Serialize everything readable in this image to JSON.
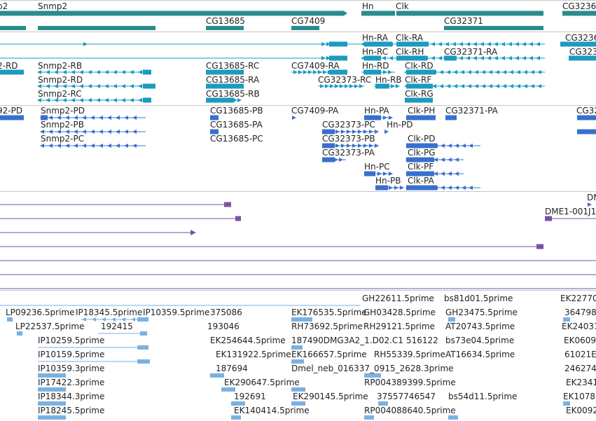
{
  "colors": {
    "gene": "#2a8c8c",
    "flybase_transcript": "#1b9bc0",
    "refseq_transcript": "#3870cf",
    "modencode": "#7a50a8",
    "est": "#7ab1e0",
    "divider": "#c8c8c8"
  },
  "tracks": {
    "genes": {
      "labels": [
        "p2",
        "Snmp2",
        "CG13685",
        "CG7409",
        "Hn",
        "Clk",
        "CG32371",
        "CG3236"
      ]
    },
    "flybase_transcripts": {
      "labels": [
        "Hn-RA",
        "Clk-RA",
        "CG3236",
        "Hn-RC",
        "Clk-RH",
        "CG32371-RA",
        "CG323",
        "2-RD",
        "Snmp2-RB",
        "CG13685-RC",
        "CG7409-RA",
        "Hn-RD",
        "Clk-RD",
        "Snmp2-RD",
        "CG13685-RA",
        "CG32373-RC",
        "Hn-RB",
        "Clk-RF",
        "Snmp2-RC",
        "CG13685-RB",
        "Clk-RG"
      ]
    },
    "refseq_transcripts": {
      "labels": [
        "92-PD",
        "Snmp2-PD",
        "CG13685-PB",
        "CG7409-PA",
        "Hn-PA",
        "Clk-PH",
        "CG32371-PA",
        "CG32",
        "Snmp2-PB",
        "CG13685-PA",
        "CG32373-PC",
        "Hn-PD",
        "Snmp2-PC",
        "CG13685-PC",
        "CG32373-PB",
        "Clk-PD",
        "CG32373-PA",
        "Clk-PG",
        "Hn-PC",
        "Clk-PF",
        "Hn-PB",
        "Clk-PA"
      ]
    },
    "modencode": {
      "labels": [
        "DM",
        "DME1-001J1"
      ]
    },
    "ests": {
      "labels": [
        "GH22611.5prime",
        "bs81d01.5prime",
        "EK22770",
        "LP09236.5prime",
        "IP18345.5prime",
        "IP10359.5prime",
        "375086",
        "EK176535.5prime",
        "GH03428.5prime",
        "GH23475.5prime",
        "364798",
        "LP22537.5prime",
        "192415",
        "193046",
        "RH73692.5prime",
        "RH29121.5prime",
        "AT20743.5prime",
        "EK24031",
        "IP10259.5prime",
        "EK254644.5prime",
        "187490DMG3A2_1.D02.C1",
        "516122",
        "bs73e04.5prime",
        "EK0609",
        "IP10159.5prime",
        "EK166657.5prime",
        "RH55339.5prime",
        "AT16634.5prime",
        "61021E",
        "EK131922.5prime",
        "IP10359.3prime",
        "187694",
        "Dmel_neb_016337_0915_2628.3prime",
        "246274",
        "IP17422.3prime",
        "EK290647.5prime",
        "RP004389399.5prime",
        "EK2341",
        "IP18344.3prime",
        "192691",
        "EK290145.5prime",
        "37557746547",
        "bs54d11.5prime",
        "EK1078",
        "IP18245.5prime",
        "EK140414.5prime",
        "RP004088640.5prime",
        "EK0092"
      ]
    }
  }
}
